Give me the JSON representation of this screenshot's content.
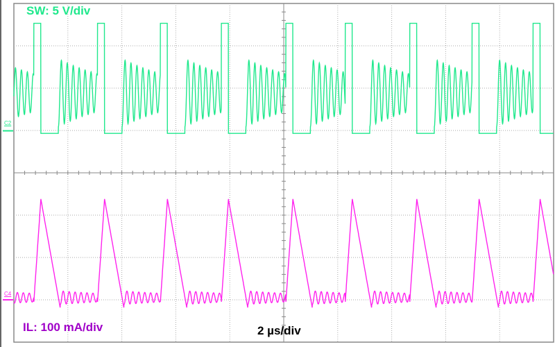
{
  "chart_data": {
    "type": "line",
    "title": "",
    "xlabel": "2 µs/div",
    "time_per_div_us": 2,
    "x_range_us": [
      -10,
      10
    ],
    "grid": true,
    "grid_divisions": {
      "horizontal": 10,
      "vertical": 8
    },
    "series": [
      {
        "name": "SW: 5 V/div",
        "channel_marker": "C2",
        "scale": "5 V/div",
        "unit": "V",
        "color": "#1fe88c",
        "pulse_start_us": [
          -9.26,
          -6.9,
          -4.57,
          -2.31,
          0.08,
          2.28,
          4.67,
          6.98,
          9.24
        ],
        "pulse_width_us": 0.26,
        "high_level_v": 12.7,
        "low_level_v": -0.3,
        "low_duration_us": 0.65,
        "ring_center_v": 4.5,
        "ring_amplitude_v": 4.0,
        "ring_period_us": 0.22
      },
      {
        "name": "IL: 100 mA/div",
        "channel_marker": "C4",
        "scale": "100 mA/div",
        "unit": "mA",
        "color": "#ff22ee",
        "label_color": "#a000c8",
        "peak_ma": 238,
        "rise_duration_us": 0.26,
        "fall_duration_us": 0.72,
        "ring_center_ma": 5,
        "ring_amplitude_ma": 16,
        "ring_period_us": 0.22
      }
    ]
  }
}
